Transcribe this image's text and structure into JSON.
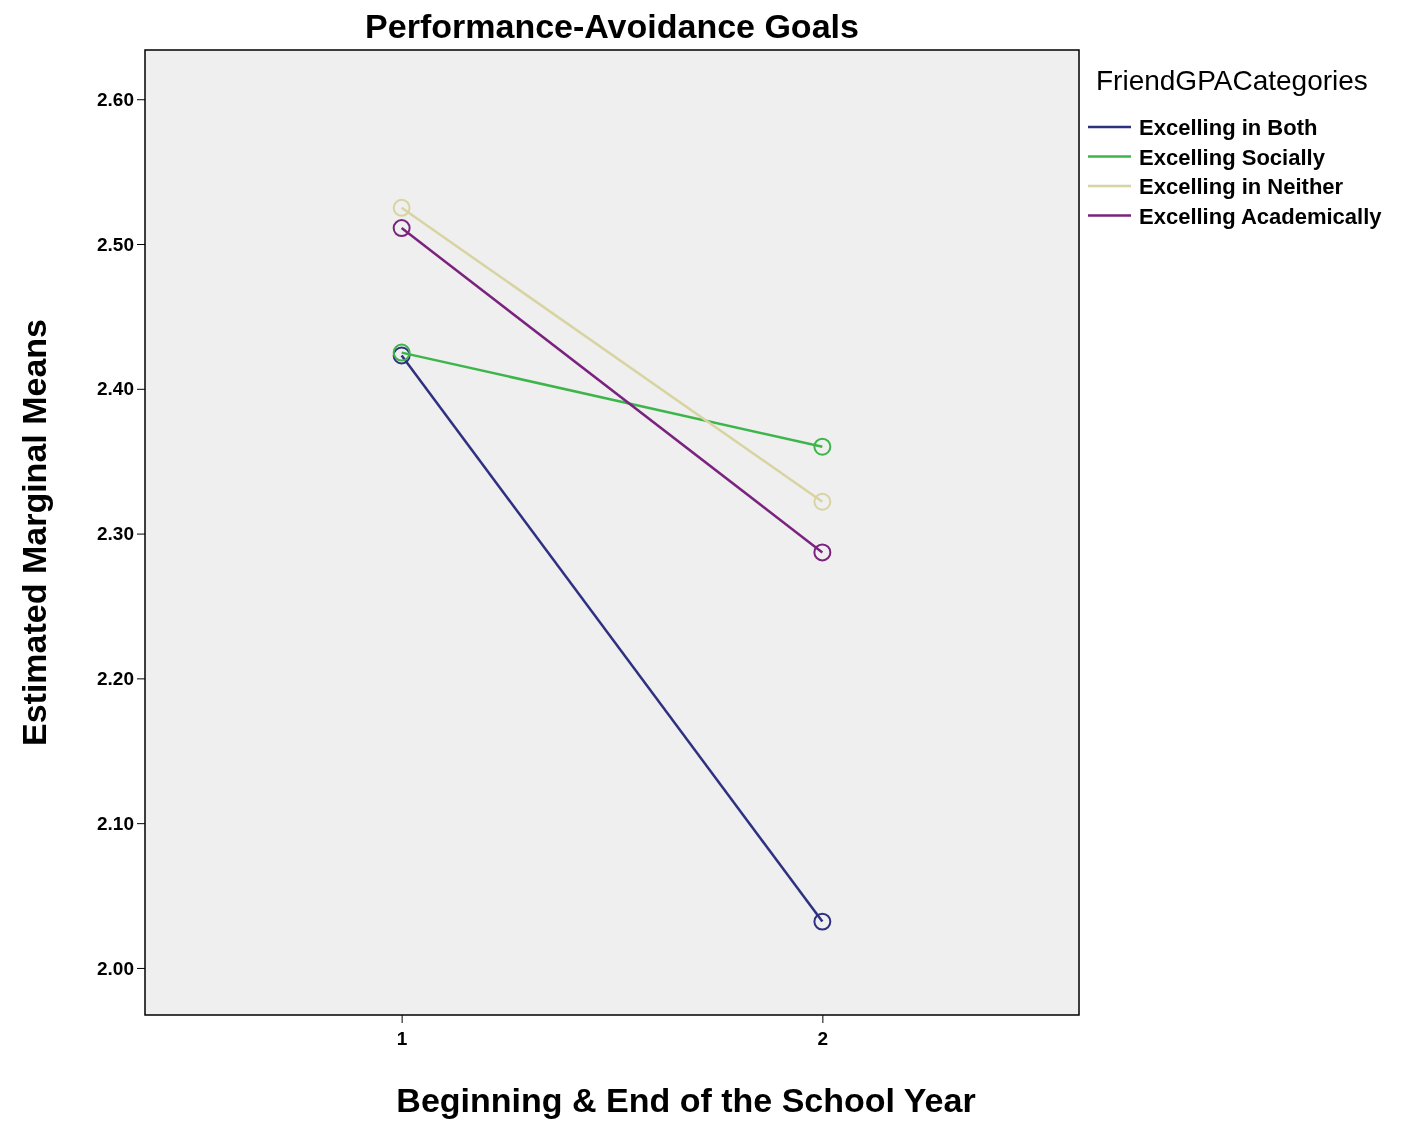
{
  "chart_data": {
    "type": "line",
    "title": "Performance-Avoidance Goals",
    "xlabel": "Beginning & End of the School Year",
    "ylabel": "Estimated Marginal Means",
    "legend_title": "FriendGPACategories",
    "categories": [
      "1",
      "2"
    ],
    "series": [
      {
        "name": "Excelling in Both",
        "color": "#2e3080",
        "values": [
          2.423,
          2.032
        ]
      },
      {
        "name": "Excelling Socially",
        "color": "#3db54a",
        "values": [
          2.425,
          2.36
        ]
      },
      {
        "name": "Excelling in Neither",
        "color": "#d8d4a2",
        "values": [
          2.525,
          2.322
        ]
      },
      {
        "name": "Excelling Academically",
        "color": "#7a237e",
        "values": [
          2.511,
          2.287
        ]
      }
    ],
    "ylim": [
      1.9675,
      2.634
    ],
    "yticks": [
      {
        "value": 2.0,
        "label": "2.00"
      },
      {
        "value": 2.1,
        "label": "2.10"
      },
      {
        "value": 2.2,
        "label": "2.20"
      },
      {
        "value": 2.3,
        "label": "2.30"
      },
      {
        "value": 2.4,
        "label": "2.40"
      },
      {
        "value": 2.5,
        "label": "2.50"
      },
      {
        "value": 2.6,
        "label": "2.60"
      }
    ],
    "legend": "top right",
    "marker": "circle",
    "line_style": "solid"
  }
}
